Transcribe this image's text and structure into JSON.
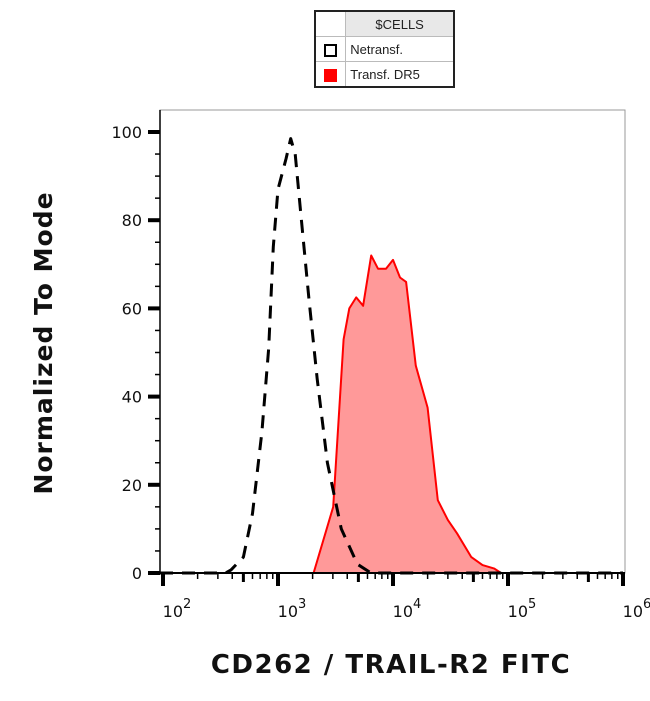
{
  "legend": {
    "header": "$CELLS",
    "entries": [
      {
        "label": "Netransf.",
        "color": "#000000",
        "style": "dashed outline"
      },
      {
        "label": "Transf. DR5",
        "color": "#ff0000",
        "style": "filled"
      }
    ]
  },
  "chart_data": {
    "type": "area",
    "xlabel": "CD262 / TRAIL-R2 FITC",
    "ylabel": "Normalized To Mode",
    "xscale": "log",
    "xlim": [
      50,
      1000000
    ],
    "ylim": [
      0,
      100
    ],
    "x_ticks": [
      {
        "base": "10",
        "exp": "2",
        "value": 100
      },
      {
        "base": "10",
        "exp": "3",
        "value": 1000
      },
      {
        "base": "10",
        "exp": "4",
        "value": 10000
      },
      {
        "base": "10",
        "exp": "5",
        "value": 100000
      },
      {
        "base": "10",
        "exp": "6",
        "value": 1000000
      }
    ],
    "y_ticks": [
      "0",
      "20",
      "40",
      "60",
      "80",
      "100"
    ],
    "y_tick_values": [
      0,
      20,
      40,
      60,
      80,
      100
    ],
    "grid": false,
    "legend_position": "top-center",
    "series": [
      {
        "name": "Netransf.",
        "color": "#000000",
        "fill": "none",
        "dash": true,
        "points": [
          [
            80,
            0
          ],
          [
            350,
            0
          ],
          [
            390,
            0.7
          ],
          [
            500,
            3.6
          ],
          [
            600,
            13.5
          ],
          [
            725,
            32
          ],
          [
            830,
            51
          ],
          [
            910,
            74
          ],
          [
            1000,
            87
          ],
          [
            1175,
            94
          ],
          [
            1290,
            98.5
          ],
          [
            1410,
            95
          ],
          [
            1585,
            81
          ],
          [
            1860,
            62
          ],
          [
            2190,
            44
          ],
          [
            2690,
            25
          ],
          [
            3550,
            10
          ],
          [
            4900,
            2
          ],
          [
            6450,
            0
          ],
          [
            1000000,
            0
          ]
        ]
      },
      {
        "name": "Transf. DR5",
        "color": "#ff0000",
        "fill": "#ff9999",
        "dash": false,
        "points": [
          [
            130,
            0
          ],
          [
            2040,
            0
          ],
          [
            3020,
            15
          ],
          [
            3720,
            53
          ],
          [
            4170,
            60
          ],
          [
            4790,
            62.5
          ],
          [
            5500,
            60.6
          ],
          [
            6460,
            72
          ],
          [
            7400,
            69
          ],
          [
            8700,
            69
          ],
          [
            10000,
            71
          ],
          [
            11500,
            67
          ],
          [
            13000,
            66
          ],
          [
            15800,
            47
          ],
          [
            20000,
            37.5
          ],
          [
            24500,
            16.5
          ],
          [
            30000,
            12
          ],
          [
            36000,
            9
          ],
          [
            48000,
            3.6
          ],
          [
            60000,
            1.8
          ],
          [
            76000,
            1
          ],
          [
            87000,
            0
          ],
          [
            800000,
            0
          ]
        ]
      }
    ]
  }
}
